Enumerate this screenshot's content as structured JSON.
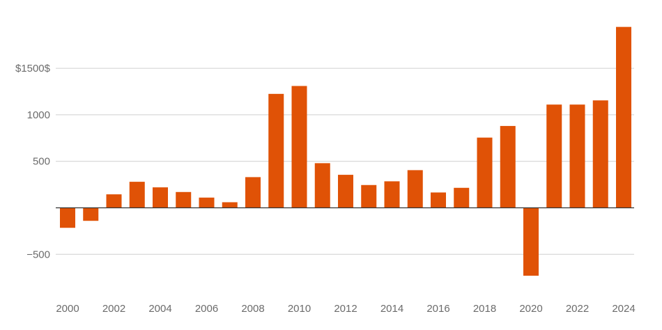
{
  "chart_data": {
    "type": "bar",
    "title": "",
    "xlabel": "",
    "ylabel": "",
    "categories": [
      2000,
      2001,
      2002,
      2003,
      2004,
      2005,
      2006,
      2007,
      2008,
      2009,
      2010,
      2011,
      2012,
      2013,
      2014,
      2015,
      2016,
      2017,
      2018,
      2019,
      2020,
      2021,
      2022,
      2023,
      2024
    ],
    "values": [
      -215,
      -140,
      145,
      280,
      220,
      170,
      110,
      60,
      330,
      1225,
      1310,
      480,
      355,
      245,
      285,
      405,
      165,
      215,
      755,
      880,
      -730,
      1110,
      1110,
      1155,
      1945
    ],
    "ylim": [
      -850,
      2000
    ],
    "y_ticks": [
      {
        "value": 1500,
        "label": "$1500$"
      },
      {
        "value": 1000,
        "label": "1000"
      },
      {
        "value": 500,
        "label": "500"
      },
      {
        "value": -500,
        "label": "−500"
      }
    ],
    "x_tick_labels": [
      "2000",
      "2002",
      "2004",
      "2006",
      "2008",
      "2010",
      "2012",
      "2014",
      "2016",
      "2018",
      "2020",
      "2022",
      "2024"
    ],
    "bar_color": "#e05206",
    "grid": true
  }
}
